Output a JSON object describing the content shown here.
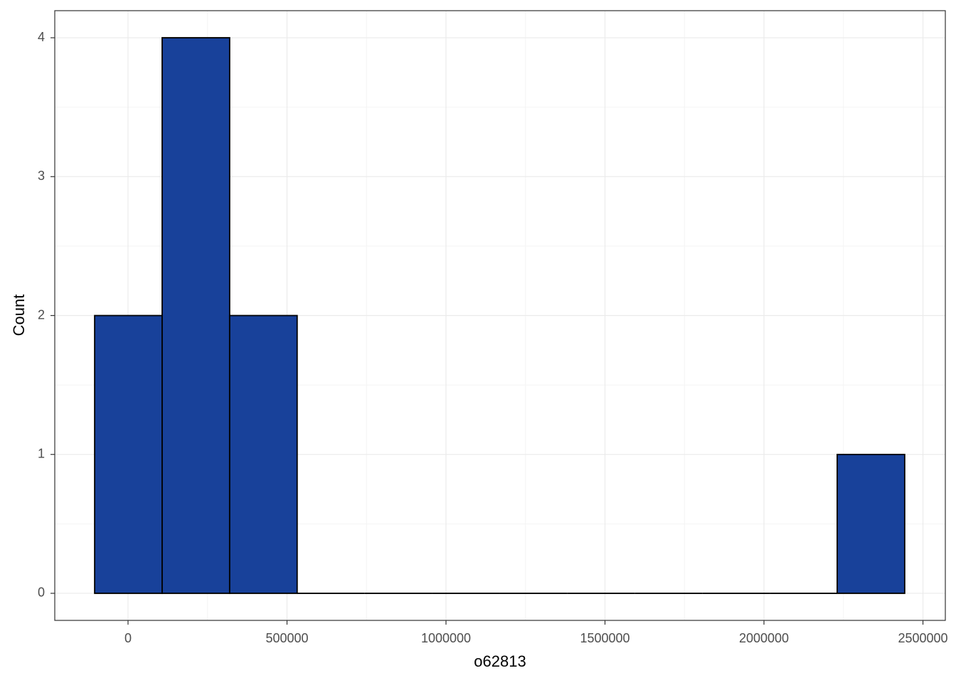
{
  "chart_data": {
    "type": "histogram",
    "x_label": "o62813",
    "y_label": "Count",
    "bins": [
      -105000,
      107300,
      319600,
      531900,
      744200,
      956500,
      1168800,
      1381100,
      1593400,
      1805700,
      2018000,
      2230300,
      2442600
    ],
    "counts": [
      2,
      4,
      2,
      0,
      0,
      0,
      0,
      0,
      0,
      0,
      0,
      1
    ],
    "color": "#18419a",
    "edge_color": "#000000",
    "xlim": [
      -230400,
      2570400
    ],
    "xticks": [
      0,
      500000,
      1000000,
      1500000,
      2000000,
      2500000
    ],
    "ylim": [
      -0.195,
      4.195
    ],
    "yticks": [
      0,
      1,
      2,
      3,
      4
    ],
    "grid": true,
    "minor_grid": true
  }
}
